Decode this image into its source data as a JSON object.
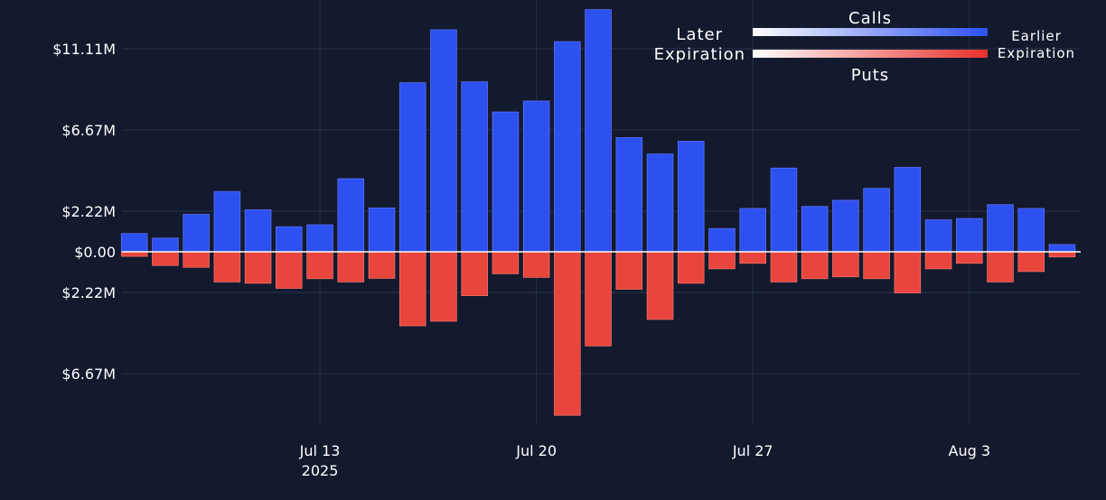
{
  "chart_data": {
    "type": "bar",
    "title": "",
    "xlabel": "",
    "ylabel": "",
    "x_ticks": [
      {
        "day": 13,
        "label": "Jul 13",
        "sublabel": "2025"
      },
      {
        "day": 20,
        "label": "Jul 20",
        "sublabel": ""
      },
      {
        "day": 27,
        "label": "Jul 27",
        "sublabel": ""
      },
      {
        "day": 34,
        "label": "Aug 3",
        "sublabel": ""
      }
    ],
    "y_ticks": [
      {
        "value": 11.11,
        "label": "$11.11M"
      },
      {
        "value": 6.67,
        "label": "$6.67M"
      },
      {
        "value": 2.22,
        "label": "$2.22M"
      },
      {
        "value": 0,
        "label": "$0.00"
      },
      {
        "value": -2.22,
        "label": "$2.22M"
      },
      {
        "value": -6.67,
        "label": "$6.67M"
      }
    ],
    "ylim": [
      -10.0,
      13.8
    ],
    "xlim": [
      6.6,
      37.6
    ],
    "grid": true,
    "categories": [
      "Jul 7",
      "Jul 8",
      "Jul 9",
      "Jul 10",
      "Jul 11",
      "Jul 12",
      "Jul 13",
      "Jul 14",
      "Jul 15",
      "Jul 16",
      "Jul 17",
      "Jul 18",
      "Jul 19",
      "Jul 20",
      "Jul 21",
      "Jul 22",
      "Jul 23",
      "Jul 24",
      "Jul 25",
      "Jul 26",
      "Jul 27",
      "Jul 28",
      "Jul 29",
      "Jul 30",
      "Jul 31",
      "Aug 1",
      "Aug 2",
      "Aug 3",
      "Aug 4",
      "Aug 5",
      "Aug 6"
    ],
    "series": [
      {
        "name": "Calls",
        "color": "#2d50f0",
        "values": [
          1.0,
          0.75,
          2.05,
          3.3,
          2.3,
          1.37,
          1.48,
          4.0,
          2.4,
          9.25,
          12.15,
          9.3,
          7.65,
          8.25,
          11.5,
          13.25,
          6.25,
          5.35,
          6.05,
          1.27,
          2.37,
          4.58,
          2.48,
          2.82,
          3.47,
          4.62,
          1.75,
          1.82,
          2.58,
          2.37,
          0.4
        ]
      },
      {
        "name": "Puts",
        "color": "#e8453c",
        "values": [
          -0.25,
          -0.75,
          -0.85,
          -1.65,
          -1.72,
          -2.0,
          -1.47,
          -1.65,
          -1.45,
          -4.05,
          -3.8,
          -2.4,
          -1.2,
          -1.4,
          -8.95,
          -5.15,
          -2.05,
          -3.7,
          -1.72,
          -0.93,
          -0.63,
          -1.65,
          -1.47,
          -1.37,
          -1.47,
          -2.25,
          -0.93,
          -0.63,
          -1.65,
          -1.08,
          -0.28
        ]
      }
    ],
    "legend": {
      "placement": "top-right",
      "calls_label": "Calls",
      "puts_label": "Puts",
      "left_line1": "Later",
      "left_line2": "Expiration",
      "right_line1": "Earlier",
      "right_line2": "Expiration",
      "calls_gradient": [
        "#ffffff",
        "#2d50f0"
      ],
      "puts_gradient": [
        "#ffffff",
        "#e8302a"
      ]
    },
    "colors": {
      "background": "#131a2e",
      "grid": "#27324a",
      "zero_line": "#ffffff"
    }
  }
}
